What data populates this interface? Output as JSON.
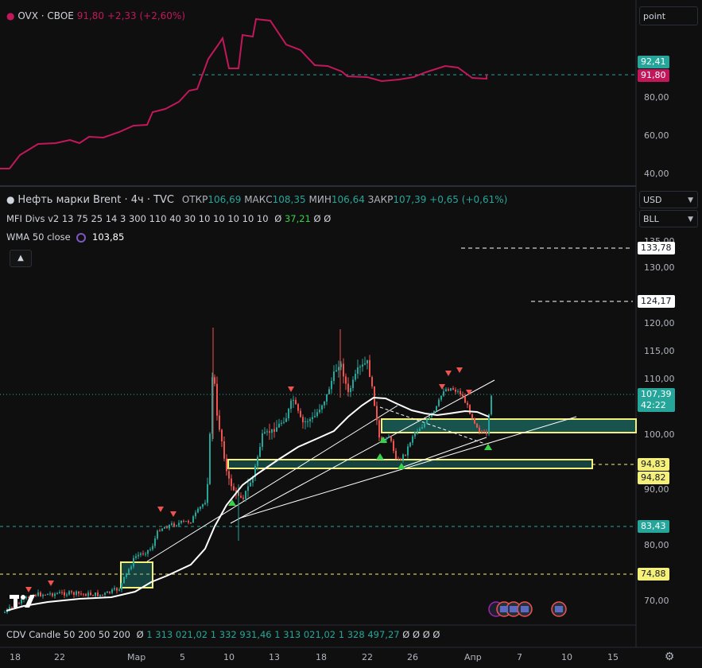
{
  "indicator_panel": {
    "symbol": "OVX · CBOE",
    "value": "91,80",
    "change": "+2,33 (+2,60%)",
    "scale_mode": "point",
    "y_ticks": [
      "80,00",
      "60,00",
      "40,00"
    ],
    "tag_green": "92,41",
    "tag_red": "91,80"
  },
  "main_panel": {
    "title": "Нефть марки Brent · 4ч · TVC",
    "ohlc": [
      {
        "label": "ОТКР",
        "value": "106,69"
      },
      {
        "label": "МАКС",
        "value": "108,35"
      },
      {
        "label": "МИН",
        "value": "106,64"
      },
      {
        "label": "ЗАКР",
        "value": "107,39"
      }
    ],
    "change": "+0,65 (+0,61%)",
    "indicators": [
      {
        "name": "MFI Divs v2 13 75 25 14 3 300 110 40 30 10 10 10 10 10",
        "values": [
          "Ø",
          "37,21",
          "Ø",
          "Ø"
        ]
      },
      {
        "name": "WMA 50 close",
        "values": [
          "103,85"
        ]
      }
    ],
    "currency": "USD",
    "unit": "BLL",
    "y_ticks": [
      "135,00",
      "130,00",
      "120,00",
      "115,00",
      "110,00",
      "100,00",
      "90,00",
      "80,00",
      "70,00"
    ],
    "price_tags": [
      {
        "value": "133,78",
        "style": "white"
      },
      {
        "value": "124,17",
        "style": "white"
      },
      {
        "value": "107,39",
        "sub": "42:22",
        "style": "teal"
      },
      {
        "value": "94,83",
        "style": "yellow"
      },
      {
        "value": "94,82",
        "style": "yellow"
      },
      {
        "value": "83,43",
        "style": "green"
      },
      {
        "value": "74,88",
        "style": "yellow"
      }
    ]
  },
  "cdv": {
    "name": "CDV Candle 50 200 50 200",
    "values": [
      "Ø",
      "1 313 021,02",
      "1 332 931,46",
      "1 313 021,02",
      "1 328 497,27",
      "Ø",
      "Ø",
      "Ø",
      "Ø"
    ]
  },
  "x_axis": [
    "18",
    "22",
    "Мар",
    "5",
    "10",
    "13",
    "18",
    "22",
    "26",
    "Апр",
    "7",
    "10",
    "15"
  ],
  "colors": {
    "background": "#0f0f0f",
    "up": "#26a69a",
    "down": "#ef5350",
    "ovx_line": "#c2185b",
    "zone": "#f5f07a",
    "wma": "#ffffff"
  },
  "icons": {
    "logo": "tradingview-logo-icon",
    "settings": "gear-icon",
    "collapse": "chevron-up-icon",
    "events": "us-flag-icon"
  }
}
